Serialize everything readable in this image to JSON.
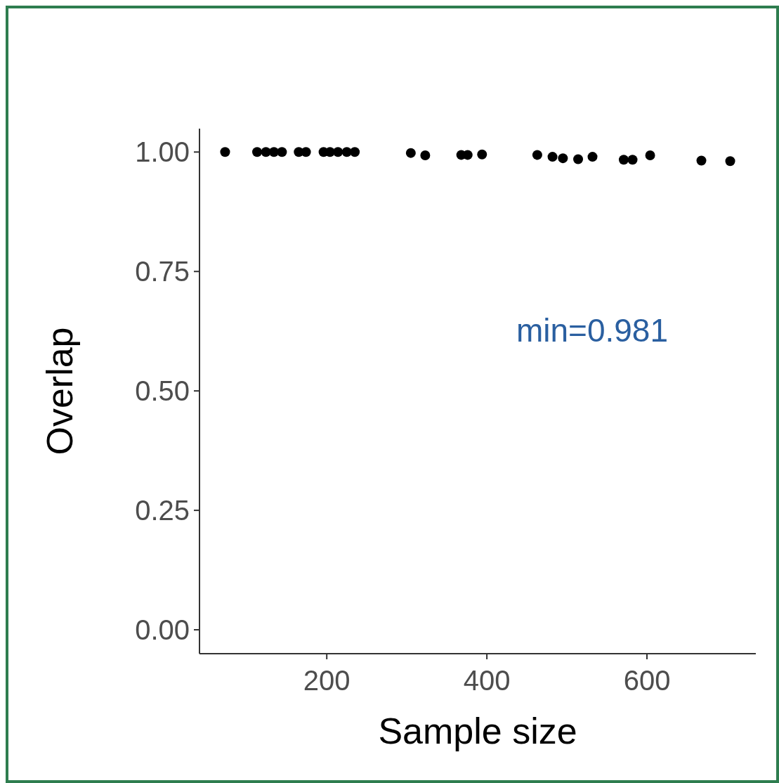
{
  "chart_data": {
    "type": "scatter",
    "ylabel": "Overlap",
    "xlabel": "Sample size",
    "x": [
      73,
      113,
      124,
      134,
      144,
      165,
      174,
      196,
      204,
      214,
      225,
      235,
      305,
      323,
      368,
      376,
      394,
      463,
      482,
      495,
      514,
      532,
      571,
      582,
      604,
      668,
      704
    ],
    "series": [
      {
        "color": "#000000",
        "values": [
          1.0,
          1.0,
          1.0,
          1.0,
          1.0,
          1.0,
          1.0,
          1.0,
          1.0,
          1.0,
          1.0,
          1.0,
          0.998,
          0.993,
          0.994,
          0.994,
          0.995,
          0.994,
          0.99,
          0.987,
          0.985,
          0.99,
          0.984,
          0.984,
          0.993,
          0.982,
          0.981
        ]
      }
    ],
    "xlim": [
      41,
      736
    ],
    "xticks": [
      200,
      400,
      600
    ],
    "ylim": [
      -0.05,
      1.049
    ],
    "yticks": [
      {
        "value": 0,
        "label": "0.00"
      },
      {
        "value": 0.25,
        "label": "0.25"
      },
      {
        "value": 0.5,
        "label": "0.50"
      },
      {
        "value": 0.75,
        "label": "0.75"
      },
      {
        "value": 1,
        "label": "1.00"
      }
    ],
    "annotations": [
      "min=0.981"
    ],
    "marker": "circle"
  }
}
